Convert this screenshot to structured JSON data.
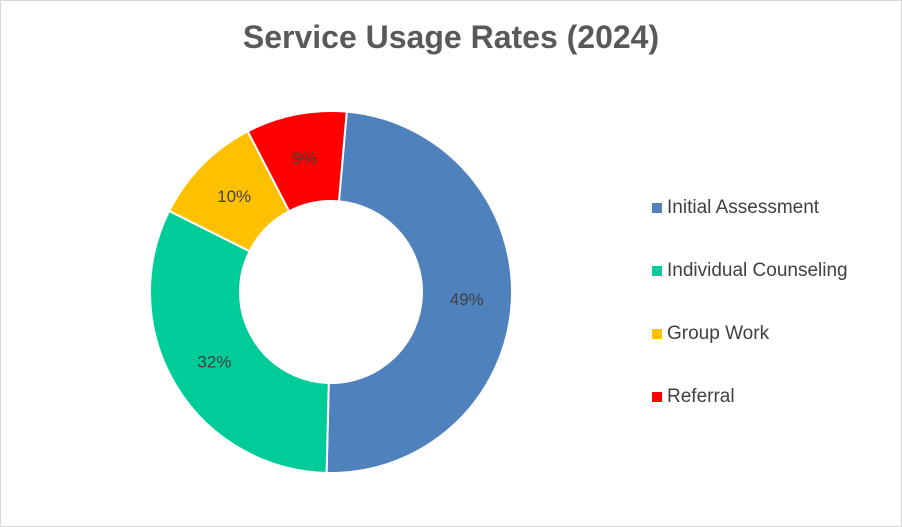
{
  "chart_data": {
    "type": "pie",
    "variant": "doughnut",
    "title": "Service Usage Rates (2024)",
    "categories": [
      "Initial Assessment",
      "Individual Counseling",
      "Group Work",
      "Referral"
    ],
    "values": [
      49,
      32,
      10,
      9
    ],
    "value_labels": [
      "49%",
      "32%",
      "10%",
      "9%"
    ],
    "colors": [
      "#4f81bd",
      "#00cc99",
      "#ffc000",
      "#ff0000"
    ],
    "legend_position": "right"
  }
}
